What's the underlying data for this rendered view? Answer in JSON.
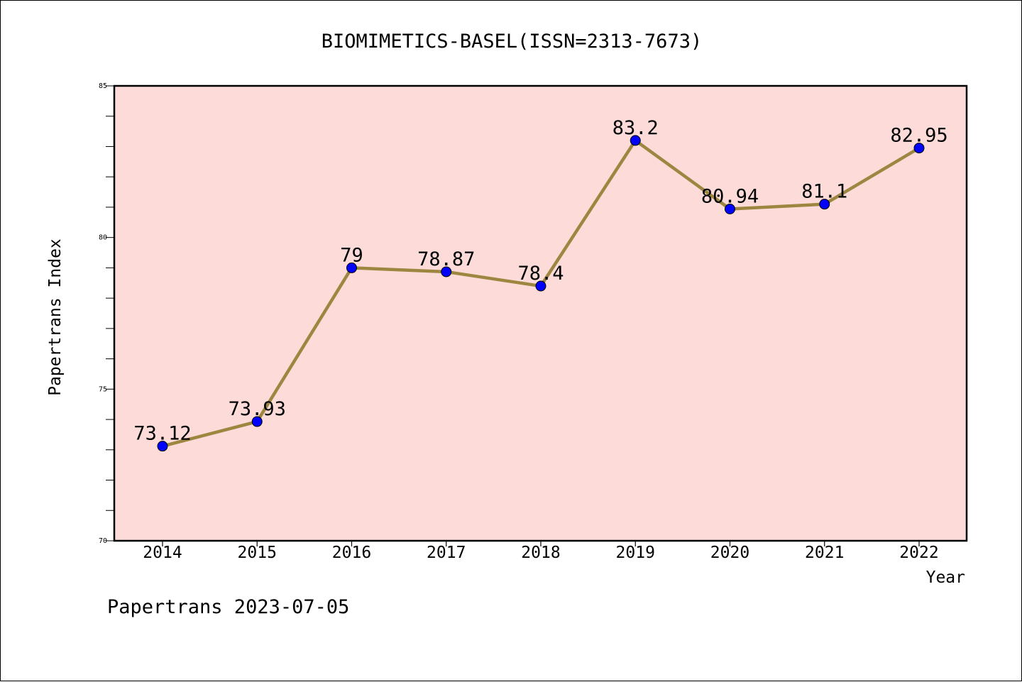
{
  "chart_data": {
    "type": "line",
    "title": "BIOMIMETICS-BASEL(ISSN=2313-7673)",
    "xlabel": "Year",
    "ylabel": "Papertrans Index",
    "footer": "Papertrans 2023-07-05",
    "categories": [
      "2014",
      "2015",
      "2016",
      "2017",
      "2018",
      "2019",
      "2020",
      "2021",
      "2022"
    ],
    "series": [
      {
        "values": [
          73.12,
          73.93,
          79,
          78.87,
          78.4,
          83.2,
          80.94,
          81.1,
          82.95
        ],
        "labels": [
          "73.12",
          "73.93",
          "79",
          "78.87",
          "78.4",
          "83.2",
          "80.94",
          "81.1",
          "82.95"
        ],
        "line_color": "#9c8640",
        "marker_color": "#0000ff"
      }
    ],
    "ylim": [
      70,
      85
    ],
    "yticks": [
      70,
      75,
      80,
      85
    ],
    "y_minor_step": 1,
    "grid": false,
    "plot_background": "#fddbd9"
  }
}
